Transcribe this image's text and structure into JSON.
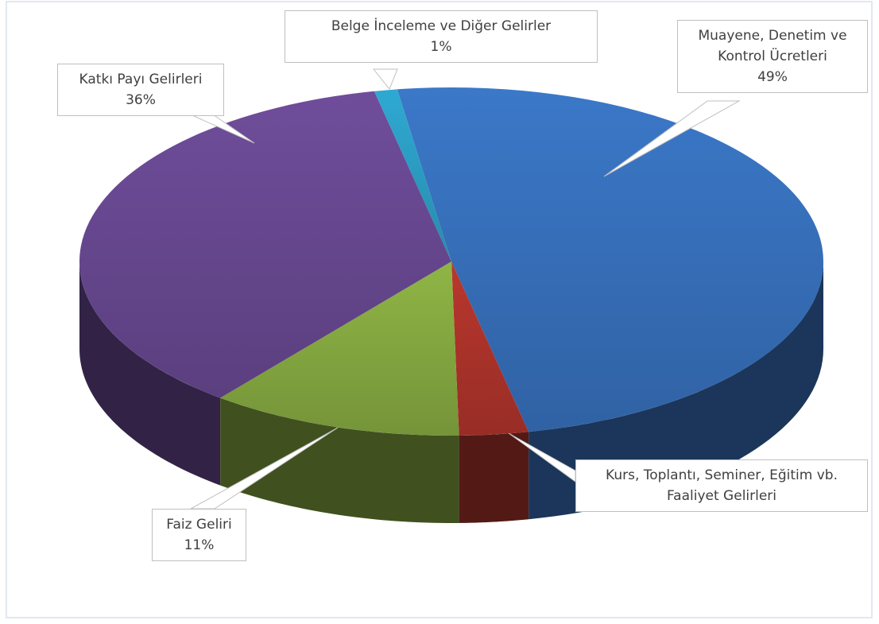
{
  "chart_data": {
    "type": "pie3d",
    "categories": [
      "Muayene, Denetim ve Kontrol Ücretleri",
      "Kurs, Toplantı, Seminer, Eğitim vb. Faaliyet Gelirleri",
      "Faiz Geliri",
      "Katkı Payı Gelirleri",
      "Belge İnceleme ve Diğer Gelirler"
    ],
    "values": [
      49,
      3,
      11,
      36,
      1
    ],
    "value_labels": [
      "49%",
      null,
      "11%",
      "36%",
      "1%"
    ],
    "colors": [
      "#3b78c8",
      "#b9372e",
      "#8fb545",
      "#6f4d9b",
      "#2fa9d2"
    ]
  }
}
